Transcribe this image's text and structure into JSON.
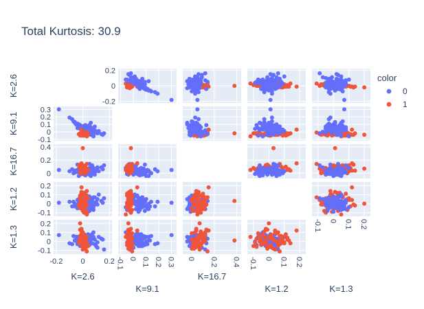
{
  "chart_data": {
    "type": "scatter",
    "title": "Total Kurtosis: 30.9",
    "dimensions": [
      "K=2.6",
      "K=9.1",
      "K=16.7",
      "K=1.2",
      "K=1.3"
    ],
    "legend": {
      "title": "color",
      "placement": "top-right",
      "entries": [
        "0",
        "1"
      ]
    },
    "colors": {
      "0": "#636efa",
      "1": "#EF553B",
      "plot_bg": "#E5ECF6",
      "grid": "#ffffff",
      "text": "#2a3f5f"
    },
    "x_ticks": [
      [
        "-0.2",
        "0",
        "0.2"
      ],
      [
        "-0.1",
        "0",
        "0.1",
        "0.2",
        "0.3"
      ],
      [
        "0",
        "0.2",
        "0.4"
      ],
      [
        "-0.1",
        "0",
        "0.1",
        "0.2"
      ],
      [
        "-0.1",
        "0",
        "0.1",
        "0.2"
      ]
    ],
    "y_ticks": [
      [
        "0.2",
        "0",
        "-0.2"
      ],
      [
        "0.3",
        "0.2",
        "0.1",
        "0",
        "-0.1"
      ],
      [
        "0.4",
        "0.2",
        "0"
      ],
      [
        "0.2",
        "0.1",
        "0",
        "-0.1"
      ],
      [
        "0.2",
        "0.1",
        "0",
        "-0.1"
      ]
    ],
    "ranges": [
      [
        -0.22,
        0.22
      ],
      [
        -0.12,
        0.34
      ],
      [
        -0.08,
        0.44
      ],
      [
        -0.14,
        0.24
      ],
      [
        -0.14,
        0.24
      ]
    ],
    "grid": true,
    "diagonal_visible": false,
    "lower_triangle_on_top": "1",
    "upper_triangle_on_top": "0",
    "series": [
      {
        "name": "0",
        "values": [
          [
            -0.1,
            0.19,
            0.03,
            0.02,
            -0.02
          ],
          [
            -0.04,
            0.1,
            0.02,
            -0.03,
            0.05
          ],
          [
            0.06,
            0.05,
            0.05,
            0.06,
            0.02
          ],
          [
            0.05,
            -0.03,
            0.14,
            0.03,
            0.03
          ],
          [
            -0.18,
            0.3,
            0.05,
            0.01,
            0.07
          ],
          [
            0.12,
            0.01,
            0.03,
            0.1,
            0.05
          ],
          [
            -0.07,
            0.14,
            0.0,
            0.02,
            0.06
          ],
          [
            0.08,
            -0.05,
            -0.01,
            -0.07,
            0.05
          ],
          [
            0.07,
            0.02,
            0.12,
            -0.06,
            0.08
          ],
          [
            0.16,
            -0.02,
            0.12,
            0.06,
            -0.09
          ],
          [
            -0.06,
            0.13,
            0.01,
            -0.03,
            0.01
          ],
          [
            0.0,
            0.06,
            0.04,
            -0.02,
            -0.01
          ],
          [
            -0.02,
            0.04,
            -0.02,
            0.05,
            -0.05
          ],
          [
            0.03,
            0.05,
            0.02,
            0.01,
            0.03
          ],
          [
            0.03,
            0.07,
            0.01,
            -0.04,
            0.02
          ],
          [
            0.06,
            0.12,
            -0.04,
            -0.06,
            0.05
          ],
          [
            0.09,
            0.07,
            -0.02,
            0.07,
            0.02
          ],
          [
            -0.01,
            0.06,
            0.05,
            0.01,
            -0.04
          ],
          [
            -0.04,
            0.09,
            0.13,
            0.04,
            -0.02
          ],
          [
            0.04,
            0.04,
            -0.01,
            -0.09,
            0.0
          ],
          [
            -0.05,
            0.1,
            0.04,
            -0.02,
            0.05
          ],
          [
            0.04,
            0.01,
            0.02,
            0.0,
            -0.01
          ],
          [
            0.0,
            0.07,
            0.04,
            -0.04,
            -0.02
          ],
          [
            0.02,
            0.01,
            -0.0,
            0.08,
            0.05
          ],
          [
            0.04,
            0.05,
            0.04,
            0.03,
            0.01
          ],
          [
            0.05,
            0.09,
            0.02,
            -0.08,
            -0.04
          ],
          [
            0.08,
            -0.06,
            0.08,
            -0.04,
            0.1
          ],
          [
            0.03,
            0.03,
            0.0,
            0.09,
            0.04
          ],
          [
            -0.01,
            0.06,
            0.01,
            -0.02,
            -0.05
          ],
          [
            0.02,
            0.05,
            -0.03,
            -0.04,
            0.04
          ],
          [
            -0.03,
            0.1,
            -0.04,
            0.05,
            -0.0
          ],
          [
            0.07,
            0.0,
            0.04,
            0.04,
            0.03
          ],
          [
            0.05,
            0.02,
            0.07,
            0.02,
            -0.02
          ],
          [
            0.0,
            0.05,
            0.01,
            -0.01,
            0.02
          ],
          [
            0.05,
            -0.0,
            -0.02,
            0.02,
            0.02
          ],
          [
            0.01,
            0.08,
            0.05,
            -0.03,
            -0.03
          ],
          [
            0.06,
            0.04,
            0.02,
            0.02,
            0.06
          ],
          [
            0.05,
            0.04,
            0.04,
            0.02,
            -0.0
          ],
          [
            -0.08,
            0.17,
            0.06,
            -0.03,
            -0.03
          ],
          [
            0.0,
            0.07,
            -0.01,
            0.03,
            -0.02
          ],
          [
            0.04,
            0.04,
            0.03,
            -0.06,
            0.06
          ],
          [
            0.11,
            0.0,
            0.09,
            0.05,
            -0.07
          ],
          [
            -0.04,
            0.09,
            0.03,
            -0.03,
            0.04
          ],
          [
            0.08,
            -0.02,
            0.01,
            0.07,
            0.03
          ],
          [
            0.08,
            0.02,
            0.07,
            0.0,
            0.03
          ],
          [
            -0.04,
            0.11,
            0.05,
            -0.05,
            -0.03
          ],
          [
            0.04,
            0.04,
            0.01,
            0.01,
            0.08
          ],
          [
            0.03,
            0.04,
            0.06,
            -0.04,
            -0.03
          ],
          [
            0.04,
            0.04,
            0.0,
            -0.05,
            0.01
          ],
          [
            -0.01,
            0.07,
            0.03,
            0.07,
            -0.03
          ],
          [
            0.06,
            -0.04,
            -0.02,
            -0.01,
            0.03
          ],
          [
            0.02,
            0.09,
            -0.01,
            0.02,
            -0.03
          ],
          [
            0.07,
            0.01,
            0.06,
            0.03,
            0.05
          ],
          [
            -0.02,
            0.08,
            0.0,
            -0.01,
            -0.03
          ],
          [
            0.0,
            0.05,
            0.03,
            0.01,
            -0.05
          ],
          [
            -0.04,
            0.05,
            0.02,
            -0.02,
            0.03
          ],
          [
            0.02,
            0.06,
            0.08,
            -0.01,
            0.04
          ],
          [
            0.11,
            -0.02,
            0.05,
            -0.01,
            -0.01
          ],
          [
            -0.03,
            0.08,
            0.07,
            0.01,
            0.04
          ],
          [
            0.0,
            0.06,
            0.05,
            0.05,
            0.03
          ],
          [
            0.09,
            0.02,
            0.04,
            -0.01,
            -0.03
          ],
          [
            0.06,
            0.06,
            0.0,
            0.02,
            0.02
          ],
          [
            0.02,
            0.03,
            0.05,
            -0.02,
            0.07
          ],
          [
            0.04,
            0.07,
            0.01,
            0.04,
            -0.05
          ],
          [
            0.0,
            0.04,
            0.03,
            0.06,
            0.01
          ],
          [
            0.14,
            -0.03,
            0.09,
            0.03,
            0.03
          ],
          [
            0.07,
            0.03,
            -0.01,
            -0.04,
            -0.02
          ],
          [
            -0.02,
            0.08,
            0.01,
            0.01,
            0.06
          ],
          [
            0.05,
            0.03,
            0.04,
            0.08,
            0.0
          ],
          [
            0.03,
            0.05,
            0.06,
            -0.07,
            0.04
          ],
          [
            0.1,
            -0.01,
            0.03,
            0.02,
            -0.05
          ],
          [
            -0.06,
            0.12,
            0.04,
            -0.0,
            0.01
          ],
          [
            0.01,
            0.06,
            0.02,
            0.04,
            0.08
          ],
          [
            0.06,
            0.03,
            0.05,
            -0.02,
            -0.01
          ],
          [
            0.04,
            0.06,
            0.02,
            0.03,
            0.02
          ],
          [
            0.02,
            0.03,
            0.01,
            -0.03,
            0.05
          ],
          [
            0.15,
            -0.04,
            0.06,
            0.01,
            0.02
          ],
          [
            -0.02,
            0.09,
            0.03,
            0.02,
            -0.02
          ],
          [
            0.05,
            0.01,
            0.08,
            -0.0,
            0.05
          ],
          [
            0.01,
            0.05,
            -0.02,
            0.05,
            0.01
          ]
        ]
      },
      {
        "name": "1",
        "values": [
          [
            0.0,
            -0.02,
            0.38,
            0.03,
            0.01
          ],
          [
            -0.01,
            0.03,
            0.15,
            0.18,
            0.12
          ],
          [
            0.03,
            -0.06,
            0.05,
            -0.12,
            0.05
          ],
          [
            -0.02,
            -0.04,
            0.07,
            0.0,
            0.2
          ],
          [
            0.03,
            -0.01,
            0.14,
            0.07,
            -0.11
          ],
          [
            -0.03,
            -0.03,
            0.12,
            -0.02,
            0.0
          ],
          [
            0.02,
            -0.02,
            0.03,
            0.1,
            -0.02
          ],
          [
            0.0,
            -0.05,
            0.11,
            0.0,
            0.06
          ],
          [
            0.01,
            -0.02,
            0.09,
            0.02,
            0.04
          ],
          [
            -0.02,
            -0.03,
            0.0,
            -0.05,
            0.02
          ],
          [
            0.04,
            -0.04,
            0.05,
            0.06,
            -0.05
          ],
          [
            0.0,
            -0.01,
            0.08,
            -0.07,
            0.09
          ],
          [
            0.02,
            -0.03,
            0.0,
            0.03,
            -0.08
          ],
          [
            0.01,
            -0.04,
            0.06,
            0.12,
            0.02
          ],
          [
            -0.01,
            -0.02,
            0.04,
            -0.02,
            0.14
          ],
          [
            0.01,
            -0.05,
            0.02,
            0.01,
            -0.04
          ],
          [
            -0.02,
            -0.03,
            0.1,
            0.08,
            0.06
          ],
          [
            0.03,
            -0.02,
            0.06,
            -0.09,
            -0.01
          ],
          [
            0.0,
            -0.04,
            0.12,
            0.04,
            0.1
          ],
          [
            0.02,
            -0.03,
            0.03,
            -0.01,
            -0.07
          ],
          [
            -0.01,
            -0.01,
            0.07,
            0.09,
            0.03
          ],
          [
            0.0,
            -0.05,
            0.05,
            -0.04,
            -0.01
          ],
          [
            0.01,
            -0.03,
            0.09,
            0.02,
            0.07
          ],
          [
            -0.02,
            -0.02,
            0.01,
            0.06,
            -0.03
          ],
          [
            0.01,
            -0.04,
            0.11,
            -0.06,
            0.05
          ],
          [
            0.03,
            -0.02,
            0.04,
            0.14,
            -0.02
          ],
          [
            -0.01,
            -0.03,
            0.08,
            -0.03,
            0.11
          ],
          [
            0.0,
            -0.04,
            0.02,
            0.05,
            0.0
          ],
          [
            0.02,
            -0.01,
            0.06,
            0.0,
            -0.06
          ],
          [
            -0.01,
            -0.05,
            0.1,
            0.11,
            0.08
          ],
          [
            0.01,
            -0.02,
            0.04,
            -0.08,
            0.03
          ],
          [
            0.0,
            -0.03,
            0.07,
            0.04,
            -0.09
          ],
          [
            -0.02,
            -0.04,
            0.13,
            -0.01,
            0.13
          ],
          [
            0.02,
            -0.02,
            0.02,
            0.07,
            0.01
          ],
          [
            0.0,
            -0.03,
            0.05,
            -0.05,
            -0.04
          ],
          [
            0.01,
            -0.05,
            0.09,
            0.01,
            0.06
          ],
          [
            -0.01,
            -0.02,
            0.03,
            0.1,
            -0.01
          ],
          [
            0.02,
            -0.04,
            0.06,
            -0.02,
            0.04
          ],
          [
            0.0,
            -0.03,
            0.0,
            0.05,
            0.09
          ],
          [
            0.01,
            -0.02,
            0.08,
            -0.1,
            -0.05
          ],
          [
            -0.02,
            -0.04,
            0.11,
            0.03,
            0.02
          ],
          [
            0.01,
            -0.01,
            0.04,
            0.08,
            -0.02
          ],
          [
            0.0,
            -0.05,
            0.07,
            -0.04,
            0.07
          ],
          [
            0.02,
            -0.03,
            0.02,
            0.02,
            -0.07
          ],
          [
            -0.01,
            -0.02,
            0.05,
            0.12,
            0.04
          ],
          [
            0.01,
            -0.04,
            0.1,
            -0.06,
            0.0
          ],
          [
            0.0,
            -0.03,
            0.03,
            0.06,
            0.1
          ],
          [
            0.03,
            -0.02,
            0.06,
            -0.02,
            -0.03
          ],
          [
            -0.02,
            -0.05,
            0.08,
            0.09,
            0.05
          ],
          [
            0.0,
            -0.03,
            0.01,
            -0.08,
            -0.06
          ],
          [
            0.01,
            -0.02,
            0.07,
            0.01,
            0.03
          ],
          [
            -0.01,
            -0.04,
            0.04,
            0.04,
            0.12
          ],
          [
            0.02,
            -0.03,
            0.09,
            -0.03,
            -0.02
          ],
          [
            0.0,
            -0.02,
            0.12,
            0.07,
            0.06
          ],
          [
            0.01,
            -0.04,
            0.02,
            -0.01,
            -0.08
          ],
          [
            -0.01,
            -0.03,
            0.06,
            0.13,
            0.01
          ]
        ]
      }
    ]
  }
}
